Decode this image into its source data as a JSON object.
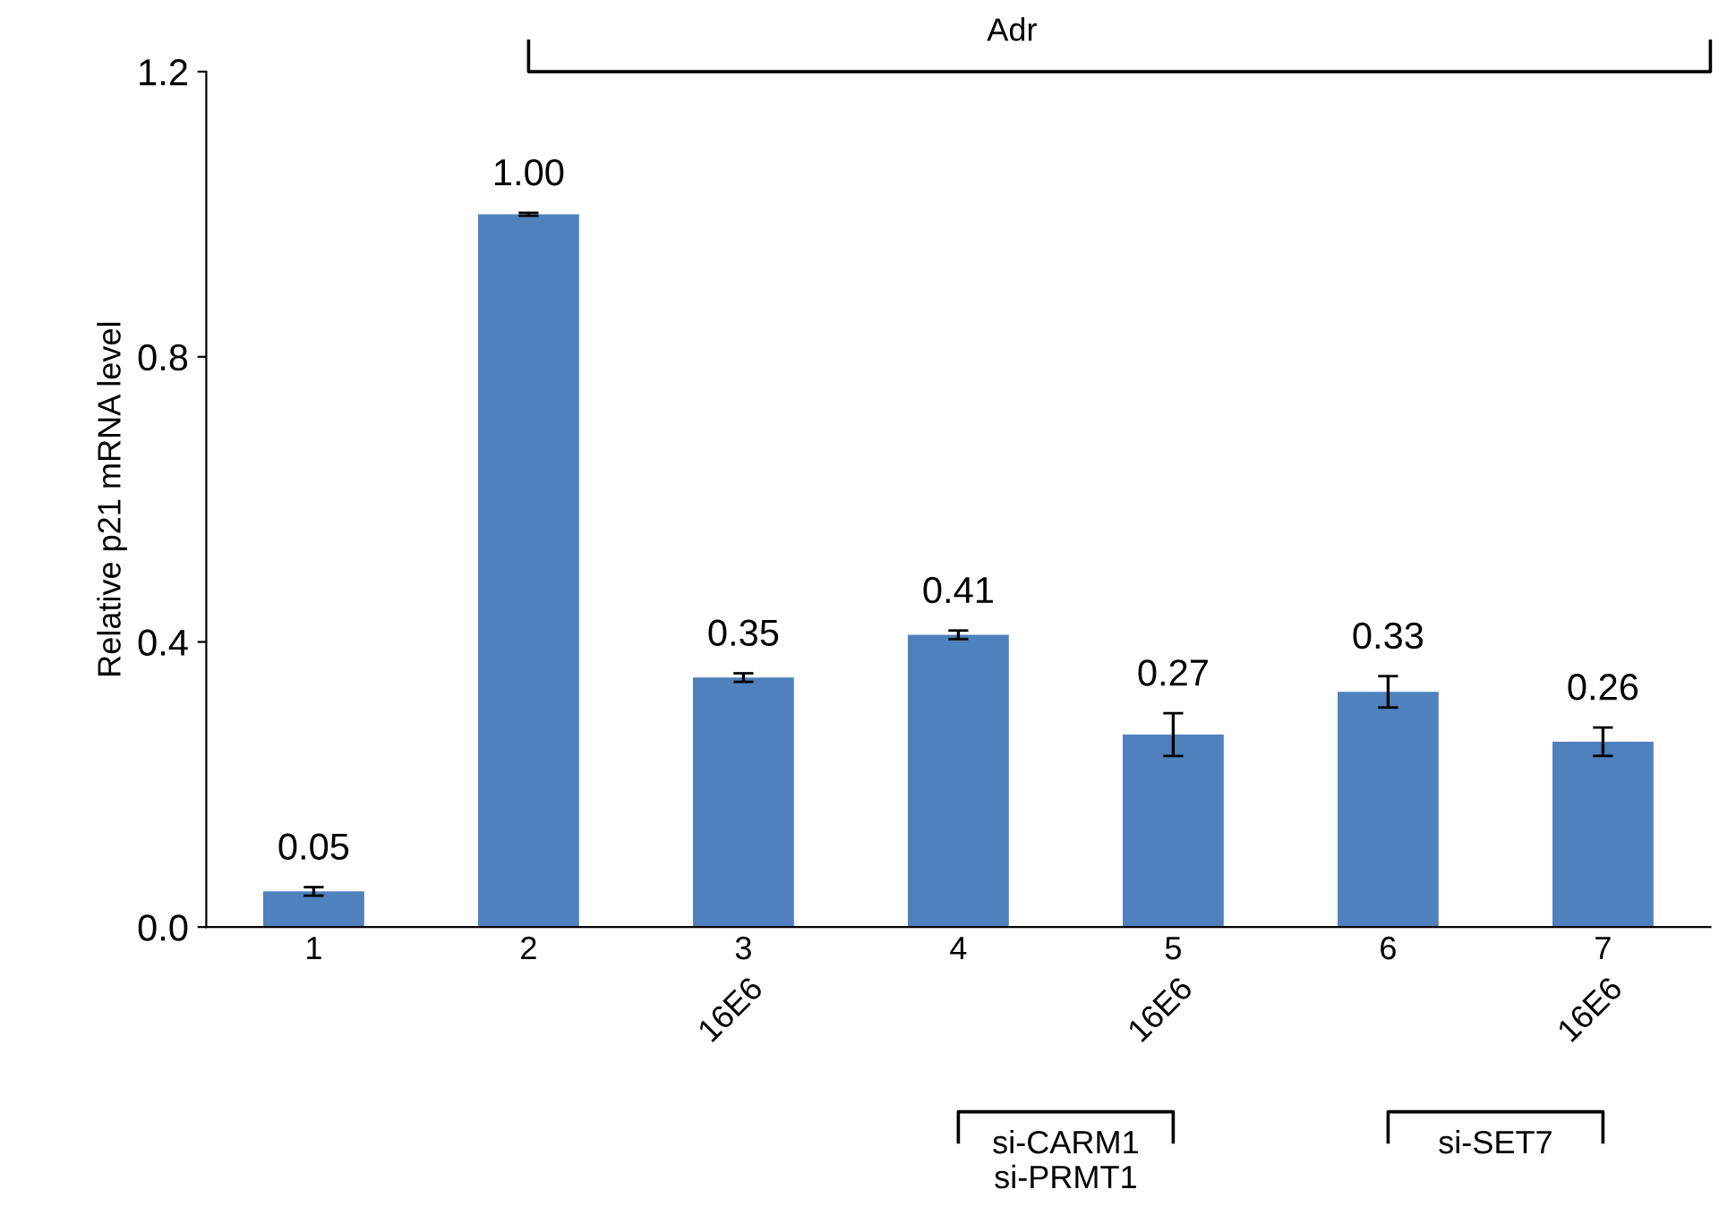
{
  "chart_data": {
    "type": "bar",
    "ylabel": "Relative p21 mRNA level",
    "categories": [
      "1",
      "2",
      "3",
      "4",
      "5",
      "6",
      "7"
    ],
    "values": [
      0.05,
      1.0,
      0.35,
      0.41,
      0.27,
      0.33,
      0.26
    ],
    "errors": [
      0.006,
      0.002,
      0.006,
      0.006,
      0.03,
      0.022,
      0.02
    ],
    "color": "#4f81bd",
    "value_labels": [
      "0.05",
      "1.00",
      "0.35",
      "0.41",
      "0.27",
      "0.33",
      "0.26"
    ],
    "grid": false,
    "legend": false,
    "ylim": [
      0,
      1.2
    ],
    "yticks": [
      {
        "value": 0,
        "label": "0.0"
      },
      {
        "value": 0.4,
        "label": "0.4"
      },
      {
        "value": 0.8,
        "label": "0.8"
      },
      {
        "value": 1.2,
        "label": "1.2"
      }
    ],
    "annotations": [
      "16E6",
      "16E6",
      "16E6",
      "si-CARM1\nsi-PRMT1",
      "si-SET7",
      "Adr"
    ]
  }
}
